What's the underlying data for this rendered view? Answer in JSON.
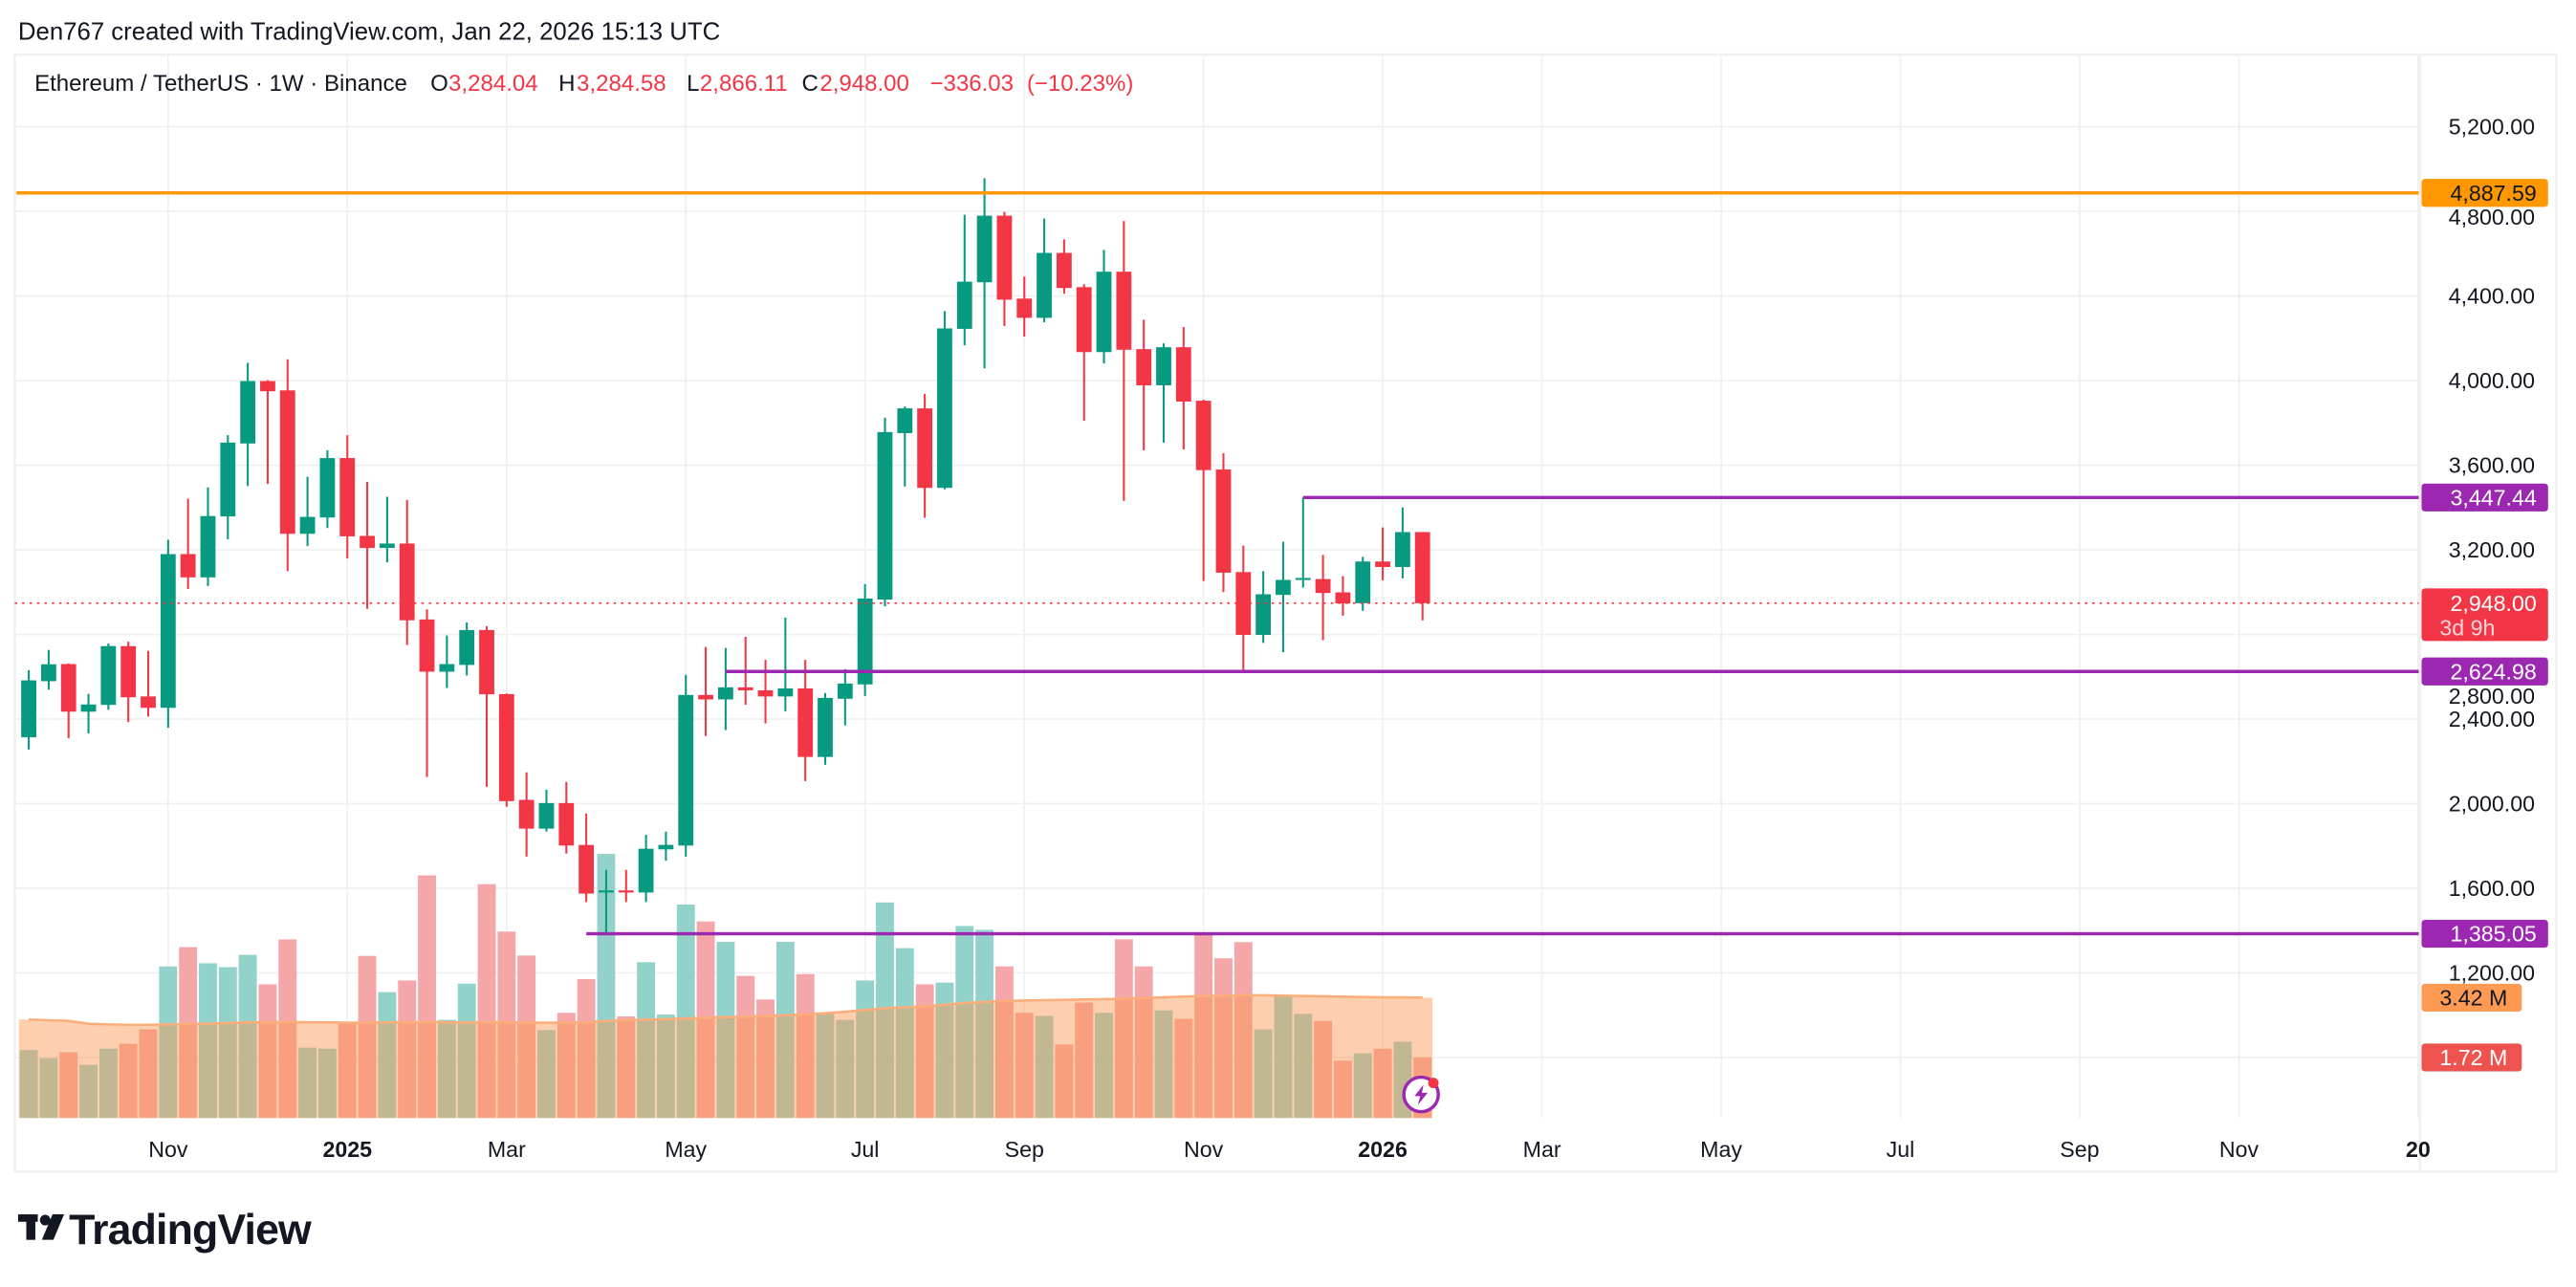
{
  "header": {
    "attribution": "Den767 created with TradingView.com, Jan 22, 2026 15:13 UTC"
  },
  "legend": {
    "symbol": "Ethereum / TetherUS · 1W · Binance",
    "o_label": "O",
    "o": "3,284.04",
    "h_label": "H",
    "h": "3,284.58",
    "l_label": "L",
    "l": "2,866.11",
    "c_label": "C",
    "c": "2,948.00",
    "change": "−336.03",
    "change_pct": "(−10.23%)"
  },
  "price_axis": {
    "ticks": [
      {
        "value": 5200,
        "label": "5,200.00"
      },
      {
        "value": 4800,
        "label": "4,800.00"
      },
      {
        "value": 4400,
        "label": "4,400.00"
      },
      {
        "value": 4000,
        "label": "4,000.00"
      },
      {
        "value": 3600,
        "label": "3,600.00"
      },
      {
        "value": 3200,
        "label": "3,200.00"
      },
      {
        "value": 2800,
        "label": "2,800.00"
      },
      {
        "value": 2400,
        "label": "2,400.00"
      },
      {
        "value": 2000,
        "label": "2,000.00"
      },
      {
        "value": 1600,
        "label": "1,600.00"
      },
      {
        "value": 1200,
        "label": "1,200.00"
      }
    ]
  },
  "time_axis": {
    "labels": [
      {
        "date": "2024-11-04",
        "label": "Nov",
        "bold": false
      },
      {
        "date": "2025-01-06",
        "label": "2025",
        "bold": true
      },
      {
        "date": "2025-03-03",
        "label": "Mar",
        "bold": false
      },
      {
        "date": "2025-05-05",
        "label": "May",
        "bold": false
      },
      {
        "date": "2025-07-07",
        "label": "Jul",
        "bold": false
      },
      {
        "date": "2025-09-01",
        "label": "Sep",
        "bold": false
      },
      {
        "date": "2025-11-03",
        "label": "Nov",
        "bold": false
      },
      {
        "date": "2026-01-05",
        "label": "2026",
        "bold": true
      },
      {
        "date": "2026-03-02",
        "label": "Mar",
        "bold": false
      },
      {
        "date": "2026-05-04",
        "label": "May",
        "bold": false
      },
      {
        "date": "2026-07-06",
        "label": "Jul",
        "bold": false
      },
      {
        "date": "2026-09-07",
        "label": "Sep",
        "bold": false
      },
      {
        "date": "2026-11-02",
        "label": "Nov",
        "bold": false
      },
      {
        "date": "2027-01-04",
        "label": "20",
        "bold": true
      }
    ]
  },
  "horizontal_lines": [
    {
      "price": 4887.59,
      "label": "4,887.59",
      "color": "#ff9800",
      "text_color": "#131722",
      "start_date": null
    },
    {
      "price": 3447.44,
      "label": "3,447.44",
      "color": "#9c27b0",
      "text_color": "#ffffff",
      "start_date": "2025-12-08"
    },
    {
      "price": 2624.98,
      "label": "2,624.98",
      "color": "#9c27b0",
      "text_color": "#ffffff",
      "start_date": "2025-05-19"
    },
    {
      "price": 1385.05,
      "label": "1,385.05",
      "color": "#9c27b0",
      "text_color": "#ffffff",
      "start_date": "2025-03-31"
    }
  ],
  "last_price": {
    "price": 2948.0,
    "label": "2,948.00",
    "countdown": "3d 9h",
    "color": "#f23645"
  },
  "volume_labels": {
    "ma": {
      "value": 3.42,
      "label": "3.42 M",
      "color": "#ff9a52"
    },
    "volume": {
      "value": 1.72,
      "label": "1.72 M",
      "color": "#ef5350"
    }
  },
  "colors": {
    "up": "#089981",
    "down": "#f23645",
    "volume_up": "#93d2cb",
    "volume_down": "#f5a6a9",
    "volume_ma_fill": "rgba(251,151,80,0.46)",
    "volume_ma_line": "#fcae7a",
    "grid": "#f0f0f0",
    "text": "#131722",
    "alert_icon": "#9c27b0"
  },
  "icons": {
    "alert": "lightning-bolt-icon",
    "logo": "tradingview-logo-icon"
  },
  "footer": {
    "logo_text": "TradingView"
  },
  "chart_data": {
    "type": "candlestick",
    "title": "Ethereum / TetherUS · 1W · Binance",
    "ylim": [
      400,
      5450
    ],
    "grid": true,
    "x": [
      "2024-09-16",
      "2024-09-23",
      "2024-09-30",
      "2024-10-07",
      "2024-10-14",
      "2024-10-21",
      "2024-10-28",
      "2024-11-04",
      "2024-11-11",
      "2024-11-18",
      "2024-11-25",
      "2024-12-02",
      "2024-12-09",
      "2024-12-16",
      "2024-12-23",
      "2024-12-30",
      "2025-01-06",
      "2025-01-13",
      "2025-01-20",
      "2025-01-27",
      "2025-02-03",
      "2025-02-10",
      "2025-02-17",
      "2025-02-24",
      "2025-03-03",
      "2025-03-10",
      "2025-03-17",
      "2025-03-24",
      "2025-03-31",
      "2025-04-07",
      "2025-04-14",
      "2025-04-21",
      "2025-04-28",
      "2025-05-05",
      "2025-05-12",
      "2025-05-19",
      "2025-05-26",
      "2025-06-02",
      "2025-06-09",
      "2025-06-16",
      "2025-06-23",
      "2025-06-30",
      "2025-07-07",
      "2025-07-14",
      "2025-07-21",
      "2025-07-28",
      "2025-08-04",
      "2025-08-11",
      "2025-08-18",
      "2025-08-25",
      "2025-09-01",
      "2025-09-08",
      "2025-09-15",
      "2025-09-22",
      "2025-09-29",
      "2025-10-06",
      "2025-10-13",
      "2025-10-20",
      "2025-10-27",
      "2025-11-03",
      "2025-11-10",
      "2025-11-17",
      "2025-11-24",
      "2025-12-01",
      "2025-12-08",
      "2025-12-15",
      "2025-12-22",
      "2025-12-29",
      "2026-01-05",
      "2026-01-12",
      "2026-01-19"
    ],
    "open": [
      2314,
      2579,
      2660,
      2435,
      2467,
      2745,
      2507,
      2453,
      3180,
      3070,
      3358,
      3703,
      3998,
      3954,
      3276,
      3353,
      3634,
      3266,
      3209,
      3230,
      2871,
      2624,
      2656,
      2821,
      2518,
      2018,
      1882,
      2003,
      1805,
      1580,
      1590,
      1580,
      1784,
      1802,
      2514,
      2493,
      2550,
      2536,
      2507,
      2545,
      2221,
      2496,
      2564,
      2965,
      3752,
      3869,
      3493,
      4245,
      4465,
      4780,
      4388,
      4297,
      4604,
      4442,
      4135,
      4515,
      4149,
      3978,
      4158,
      3905,
      3580,
      3095,
      2798,
      2987,
      3060,
      3062,
      2999,
      2948,
      3145,
      3119,
      3284.04
    ],
    "high": [
      2631,
      2727,
      2663,
      2519,
      2757,
      2766,
      2722,
      3248,
      3442,
      3495,
      3742,
      4084,
      4003,
      4101,
      3545,
      3671,
      3742,
      3522,
      3451,
      3436,
      2919,
      2795,
      2857,
      2839,
      2521,
      2148,
      2066,
      2103,
      1953,
      1687,
      1687,
      1853,
      1868,
      2609,
      2741,
      2736,
      2789,
      2680,
      2880,
      2680,
      2523,
      2636,
      3038,
      3825,
      3878,
      3937,
      4329,
      4784,
      4957,
      4798,
      4492,
      4766,
      4668,
      4456,
      4618,
      4754,
      4288,
      4176,
      4253,
      3910,
      3657,
      3220,
      3099,
      3238,
      3447.44,
      3176,
      3076,
      3167,
      3306,
      3401,
      3284.58
    ],
    "low": [
      2256,
      2539,
      2309,
      2332,
      2444,
      2386,
      2412,
      2359,
      3015,
      3029,
      3250,
      3502,
      3511,
      3100,
      3218,
      3303,
      3159,
      2921,
      3141,
      2750,
      2126,
      2547,
      2606,
      2080,
      1986,
      1750,
      1868,
      1764,
      1535,
      1385.05,
      1535,
      1535,
      1730,
      1750,
      2320,
      2348,
      2468,
      2379,
      2437,
      2107,
      2184,
      2370,
      2509,
      2933,
      3500,
      3352,
      3486,
      4167,
      4058,
      4258,
      4208,
      4276,
      4411,
      3810,
      4081,
      3432,
      3671,
      3707,
      3675,
      3053,
      3000,
      2624.98,
      2760,
      2716,
      3022,
      2773,
      2889,
      2912,
      3056,
      3065,
      2866.11
    ],
    "close": [
      2583,
      2659,
      2435,
      2469,
      2745,
      2503,
      2453,
      3180,
      3070,
      3360,
      3707,
      3998,
      3950,
      3276,
      3356,
      3634,
      3264,
      3209,
      3230,
      2867,
      2624,
      2660,
      2821,
      2517,
      2012,
      1882,
      2003,
      1802,
      1575,
      1590,
      1580,
      1787,
      1805,
      2514,
      2493,
      2550,
      2536,
      2507,
      2545,
      2221,
      2500,
      2568,
      2970,
      3757,
      3869,
      3493,
      4247,
      4468,
      4780,
      4383,
      4297,
      4604,
      4438,
      4135,
      4515,
      4146,
      3978,
      4158,
      3901,
      3577,
      3092,
      2798,
      2990,
      3058,
      3067,
      2996,
      2947,
      3145,
      3119,
      3284,
      2948.0
    ],
    "volume_unit": "M",
    "volume": [
      1.93,
      1.7,
      1.87,
      1.51,
      1.97,
      2.11,
      2.52,
      4.31,
      4.86,
      4.4,
      4.29,
      4.64,
      3.8,
      5.08,
      2.0,
      1.97,
      2.72,
      4.61,
      3.58,
      3.91,
      6.9,
      2.79,
      3.82,
      6.65,
      5.3,
      4.62,
      2.5,
      2.99,
      3.95,
      7.51,
      2.89,
      4.43,
      2.94,
      6.07,
      5.59,
      5.01,
      4.04,
      3.37,
      5.01,
      4.09,
      2.96,
      2.79,
      3.91,
      6.13,
      4.83,
      3.8,
      3.85,
      5.46,
      5.35,
      4.31,
      2.99,
      2.9,
      2.09,
      3.28,
      2.99,
      5.08,
      4.31,
      3.06,
      2.82,
      5.24,
      4.54,
      5.0,
      2.52,
      3.48,
      2.96,
      2.76,
      1.63,
      1.84,
      1.97,
      2.17,
      1.72
    ],
    "volume_ma": [
      2.8,
      2.78,
      2.76,
      2.68,
      2.66,
      2.65,
      2.65,
      2.66,
      2.67,
      2.68,
      2.7,
      2.72,
      2.72,
      2.73,
      2.72,
      2.72,
      2.71,
      2.71,
      2.72,
      2.72,
      2.73,
      2.72,
      2.71,
      2.73,
      2.72,
      2.71,
      2.71,
      2.71,
      2.72,
      2.76,
      2.78,
      2.8,
      2.81,
      2.83,
      2.85,
      2.87,
      2.88,
      2.9,
      2.92,
      2.95,
      2.98,
      3.02,
      3.07,
      3.12,
      3.15,
      3.17,
      3.22,
      3.27,
      3.3,
      3.33,
      3.34,
      3.35,
      3.36,
      3.37,
      3.38,
      3.39,
      3.41,
      3.43,
      3.45,
      3.47,
      3.48,
      3.49,
      3.49,
      3.48,
      3.47,
      3.46,
      3.45,
      3.44,
      3.43,
      3.43,
      3.42
    ]
  }
}
